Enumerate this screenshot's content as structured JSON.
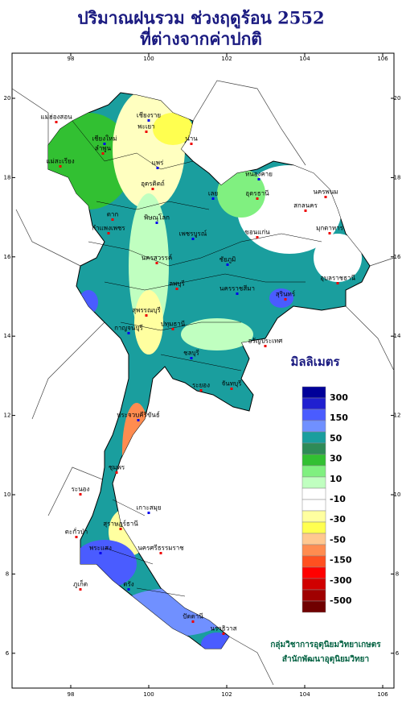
{
  "header": {
    "title": "ปริมาณฝนรวม ช่วงฤดูร้อน 2552",
    "subtitle": "ที่ต่างจากค่าปกติ"
  },
  "map": {
    "lon_ticks": [
      98,
      100,
      102,
      104,
      106
    ],
    "lat_ticks": [
      6,
      8,
      10,
      12,
      14,
      16,
      18,
      20
    ],
    "places": [
      "เชียงราย",
      "แม่ฮ่องสอน",
      "พะเยา",
      "เชียงใหม่",
      "น่าน",
      "ลำพูน",
      "แพร่",
      "แม่สะเรียง",
      "อุตรดิตถ์",
      "หนองคาย",
      "อุดรธานี",
      "นครพนม",
      "เลย",
      "สกลนคร",
      "ตาก",
      "พิษณุโลก",
      "มุกดาหาร",
      "กำแพงเพชร",
      "เพชรบูรณ์",
      "ขอนแก่น",
      "นครสวรรค์",
      "ชัยภูมิ",
      "อุบลราชธานี",
      "ลพบุรี",
      "นครราชสีมา",
      "สุรินทร์",
      "สุพรรณบุรี",
      "กาญจนบุรี",
      "ปทุมธานี",
      "อรัญประเทศ",
      "ชลบุรี",
      "ระยอง",
      "จันทบุรี",
      "ประจวบคีรีขันธ์",
      "ชุมพร",
      "ระนอง",
      "เกาะสมุย",
      "สุราษฎร์ธานี",
      "ตะกั่วป่า",
      "พระแสง",
      "นครศรีธรรมราช",
      "ภูเก็ต",
      "ตรัง",
      "ปัตตานี",
      "นราธิวาส"
    ]
  },
  "legend": {
    "title": "มิลลิเมตร",
    "labels": [
      "300",
      "150",
      "50",
      "30",
      "10",
      "-10",
      "-30",
      "-50",
      "-150",
      "-300",
      "-500"
    ],
    "colors": [
      "#000099",
      "#2020d0",
      "#4a5cff",
      "#7090ff",
      "#1a9e9e",
      "#2e8b57",
      "#32c032",
      "#80f080",
      "#c0ffc0",
      "#ffffff",
      "#ffffff",
      "#ffffa0",
      "#ffff50",
      "#ffc890",
      "#ff8c50",
      "#ff5020",
      "#ff0000",
      "#d00000",
      "#a00000",
      "#700000"
    ]
  },
  "credits": [
    "กลุ่มวิชาการอุตุนิยมวิทยาเกษตร",
    "สำนักพัฒนาอุตุนิยมวิทยา"
  ]
}
